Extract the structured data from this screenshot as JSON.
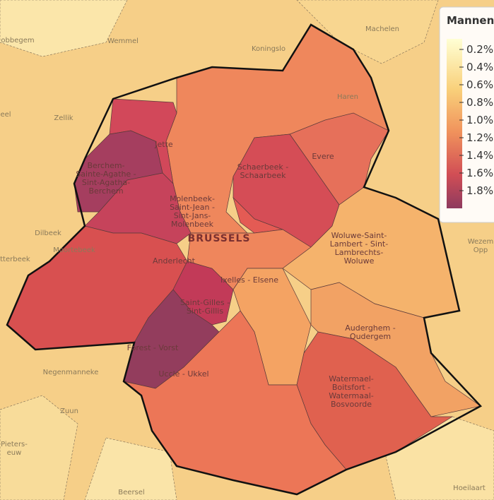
{
  "map": {
    "legend": {
      "title": "Mannen",
      "labels": [
        "0.2%",
        "0.4%",
        "0.6%",
        "0.8%",
        "1.0%",
        "1.2%",
        "1.4%",
        "1.6%",
        "1.8%"
      ]
    },
    "places": [
      {
        "lines": [
          "Machelen"
        ]
      },
      {
        "lines": [
          "Wemmel"
        ]
      },
      {
        "lines": [
          "obbegem"
        ]
      },
      {
        "lines": [
          "Koningslo"
        ]
      },
      {
        "lines": [
          "Haren"
        ]
      },
      {
        "lines": [
          "Zellik"
        ]
      },
      {
        "lines": [
          "Jette"
        ]
      },
      {
        "lines": [
          "Evere"
        ]
      },
      {
        "lines": [
          "Schaerbeek -",
          "Schaarbeek"
        ]
      },
      {
        "lines": [
          "Berchem-",
          "Sainte-Agathe -",
          "Sint-Agatha-",
          "Berchem"
        ]
      },
      {
        "lines": [
          "Molenbeek-",
          "Saint-Jean -",
          "Sint-Jans-",
          "Molenbeek"
        ]
      },
      {
        "lines": [
          "BRUSSELS"
        ]
      },
      {
        "lines": [
          "Dilbeek"
        ]
      },
      {
        "lines": [
          "Moortebeek"
        ]
      },
      {
        "lines": [
          "itterbeek"
        ]
      },
      {
        "lines": [
          "Woluwe-Saint-",
          "Lambert - Sint-",
          "Lambrechts-",
          "Woluwe"
        ]
      },
      {
        "lines": [
          "Anderlecht"
        ]
      },
      {
        "lines": [
          "Ixelles - Elsene"
        ]
      },
      {
        "lines": [
          "Saint-Gilles -",
          "Sint-Gillis"
        ]
      },
      {
        "lines": [
          "Auderghem -",
          "Oudergem"
        ]
      },
      {
        "lines": [
          "Forest - Vorst"
        ]
      },
      {
        "lines": [
          "Uccle - Ukkel"
        ]
      },
      {
        "lines": [
          "Watermael-",
          "Boitsfort -",
          "Watermaal-",
          "Bosvoorde"
        ]
      },
      {
        "lines": [
          "Negenmanneke"
        ]
      },
      {
        "lines": [
          "Zuun"
        ]
      },
      {
        "lines": [
          "Pieters-",
          "euw"
        ]
      },
      {
        "lines": [
          "Beersel"
        ]
      },
      {
        "lines": [
          "Hoeilaart"
        ]
      },
      {
        "lines": [
          "Wezem",
          "Opp"
        ]
      },
      {
        "lines": [
          "eel"
        ]
      }
    ]
  }
}
